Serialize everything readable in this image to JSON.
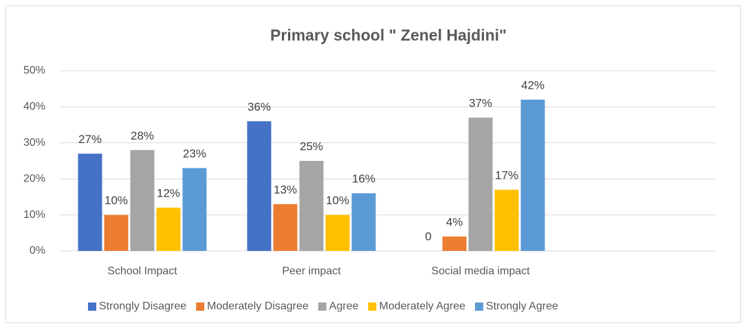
{
  "chart_data": {
    "type": "bar",
    "title": "Primary school \" Zenel Hajdini\"",
    "categories": [
      "School Impact",
      "Peer impact",
      "Social media impact"
    ],
    "series": [
      {
        "name": "Strongly Disagree",
        "color": "#4472c4",
        "values": [
          27,
          36,
          0
        ],
        "value_labels": [
          "27%",
          "36%",
          "0"
        ]
      },
      {
        "name": "Moderately Disagree",
        "color": "#ed7d31",
        "values": [
          10,
          13,
          4
        ],
        "value_labels": [
          "10%",
          "13%",
          "4%"
        ]
      },
      {
        "name": "Agree",
        "color": "#a5a5a5",
        "values": [
          28,
          25,
          37
        ],
        "value_labels": [
          "28%",
          "25%",
          "37%"
        ]
      },
      {
        "name": "Moderately Agree",
        "color": "#ffc000",
        "values": [
          12,
          10,
          17
        ],
        "value_labels": [
          "12%",
          "10%",
          "17%"
        ]
      },
      {
        "name": "Strongly Agree",
        "color": "#5b9bd5",
        "values": [
          23,
          16,
          42
        ],
        "value_labels": [
          "23%",
          "16%",
          "42%"
        ]
      }
    ],
    "ylim": [
      0,
      50
    ],
    "yticks": [
      {
        "value": 0,
        "label": "0%"
      },
      {
        "value": 10,
        "label": "10%"
      },
      {
        "value": 20,
        "label": "20%"
      },
      {
        "value": 30,
        "label": "30%"
      },
      {
        "value": 40,
        "label": "40%"
      },
      {
        "value": 50,
        "label": "50%"
      }
    ],
    "grid": true,
    "legend": "bottom"
  }
}
